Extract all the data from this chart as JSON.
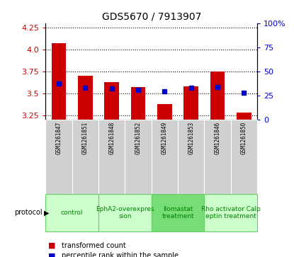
{
  "title": "GDS5670 / 7913907",
  "samples": [
    "GSM1261847",
    "GSM1261851",
    "GSM1261848",
    "GSM1261852",
    "GSM1261849",
    "GSM1261853",
    "GSM1261846",
    "GSM1261850"
  ],
  "transformed_counts": [
    4.07,
    3.7,
    3.63,
    3.57,
    3.38,
    3.58,
    3.75,
    3.28
  ],
  "percentile_ranks": [
    37,
    33,
    32,
    31,
    29,
    33,
    34,
    28
  ],
  "ylim_left": [
    3.2,
    4.3
  ],
  "yticks_left": [
    3.25,
    3.5,
    3.75,
    4.0,
    4.25
  ],
  "yticks_right": [
    0,
    25,
    50,
    75,
    100
  ],
  "bar_color": "#cc0000",
  "dot_color": "#0000cc",
  "bar_width": 0.55,
  "protocols": [
    {
      "label": "control",
      "cols": [
        0,
        1
      ],
      "color": "#ccffcc",
      "border": "#66cc66"
    },
    {
      "label": "EphA2-overexpres\nsion",
      "cols": [
        2,
        3
      ],
      "color": "#ccffcc",
      "border": "#66cc66"
    },
    {
      "label": "Ilomastat\ntreatment",
      "cols": [
        4,
        5
      ],
      "color": "#77dd77",
      "border": "#66cc66"
    },
    {
      "label": "Rho activator Calp\neptin treatment",
      "cols": [
        6,
        7
      ],
      "color": "#ccffcc",
      "border": "#66cc66"
    }
  ],
  "xlabel_color": "#cc0000",
  "ylabel_right_color": "#0000cc",
  "grid_color": "#000000",
  "background_color": "#ffffff",
  "bar_base": 3.2,
  "sample_bg_color": "#d0d0d0",
  "sample_border_color": "#aaaaaa"
}
